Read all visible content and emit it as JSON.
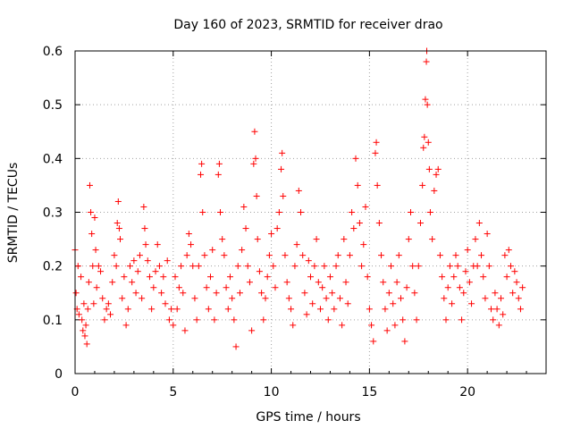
{
  "chart_data": {
    "type": "scatter",
    "title": "Day 160 of 2023, SRMTID for receiver drao",
    "xlabel": "GPS time / hours",
    "ylabel": "SRMTID / TECUs",
    "xlim": [
      0,
      24
    ],
    "ylim": [
      0,
      0.6
    ],
    "x_ticks": [
      0,
      5,
      10,
      15,
      20
    ],
    "x_tick_labels": [
      "0",
      "5",
      "10",
      "15",
      "20"
    ],
    "y_ticks": [
      0,
      0.1,
      0.2,
      0.3,
      0.4,
      0.5,
      0.6
    ],
    "y_tick_labels": [
      "0",
      "0.1",
      "0.2",
      "0.3",
      "0.4",
      "0.5",
      "0.6"
    ],
    "grid": true,
    "marker": "+",
    "color": "#ff0000",
    "series": [
      {
        "name": "SRMTID",
        "points": [
          [
            0.0,
            0.23
          ],
          [
            0.05,
            0.15
          ],
          [
            0.1,
            0.12
          ],
          [
            0.15,
            0.2
          ],
          [
            0.2,
            0.11
          ],
          [
            0.3,
            0.18
          ],
          [
            0.35,
            0.1
          ],
          [
            0.4,
            0.08
          ],
          [
            0.45,
            0.13
          ],
          [
            0.5,
            0.07
          ],
          [
            0.55,
            0.09
          ],
          [
            0.6,
            0.055
          ],
          [
            0.65,
            0.12
          ],
          [
            0.7,
            0.17
          ],
          [
            0.75,
            0.35
          ],
          [
            0.8,
            0.3
          ],
          [
            0.85,
            0.26
          ],
          [
            0.9,
            0.2
          ],
          [
            0.95,
            0.13
          ],
          [
            1.0,
            0.29
          ],
          [
            1.05,
            0.23
          ],
          [
            1.1,
            0.16
          ],
          [
            1.2,
            0.2
          ],
          [
            1.3,
            0.19
          ],
          [
            1.4,
            0.14
          ],
          [
            1.5,
            0.1
          ],
          [
            1.6,
            0.12
          ],
          [
            1.7,
            0.13
          ],
          [
            1.8,
            0.11
          ],
          [
            1.9,
            0.17
          ],
          [
            2.0,
            0.22
          ],
          [
            2.1,
            0.2
          ],
          [
            2.15,
            0.28
          ],
          [
            2.2,
            0.32
          ],
          [
            2.25,
            0.27
          ],
          [
            2.3,
            0.25
          ],
          [
            2.4,
            0.14
          ],
          [
            2.5,
            0.18
          ],
          [
            2.6,
            0.09
          ],
          [
            2.7,
            0.12
          ],
          [
            2.8,
            0.2
          ],
          [
            2.9,
            0.17
          ],
          [
            3.0,
            0.21
          ],
          [
            3.1,
            0.15
          ],
          [
            3.2,
            0.19
          ],
          [
            3.3,
            0.22
          ],
          [
            3.4,
            0.14
          ],
          [
            3.5,
            0.31
          ],
          [
            3.55,
            0.27
          ],
          [
            3.6,
            0.24
          ],
          [
            3.7,
            0.21
          ],
          [
            3.8,
            0.18
          ],
          [
            3.9,
            0.12
          ],
          [
            4.0,
            0.16
          ],
          [
            4.1,
            0.19
          ],
          [
            4.2,
            0.24
          ],
          [
            4.3,
            0.2
          ],
          [
            4.4,
            0.15
          ],
          [
            4.5,
            0.18
          ],
          [
            4.6,
            0.13
          ],
          [
            4.7,
            0.21
          ],
          [
            4.8,
            0.1
          ],
          [
            4.9,
            0.12
          ],
          [
            5.0,
            0.09
          ],
          [
            5.1,
            0.18
          ],
          [
            5.2,
            0.12
          ],
          [
            5.3,
            0.16
          ],
          [
            5.4,
            0.2
          ],
          [
            5.5,
            0.15
          ],
          [
            5.6,
            0.08
          ],
          [
            5.7,
            0.22
          ],
          [
            5.8,
            0.26
          ],
          [
            5.9,
            0.24
          ],
          [
            6.0,
            0.2
          ],
          [
            6.1,
            0.14
          ],
          [
            6.2,
            0.1
          ],
          [
            6.3,
            0.2
          ],
          [
            6.4,
            0.37
          ],
          [
            6.45,
            0.39
          ],
          [
            6.5,
            0.3
          ],
          [
            6.6,
            0.22
          ],
          [
            6.7,
            0.16
          ],
          [
            6.8,
            0.12
          ],
          [
            6.9,
            0.18
          ],
          [
            7.0,
            0.23
          ],
          [
            7.1,
            0.1
          ],
          [
            7.2,
            0.15
          ],
          [
            7.3,
            0.37
          ],
          [
            7.35,
            0.39
          ],
          [
            7.4,
            0.3
          ],
          [
            7.5,
            0.25
          ],
          [
            7.6,
            0.22
          ],
          [
            7.7,
            0.16
          ],
          [
            7.8,
            0.12
          ],
          [
            7.9,
            0.18
          ],
          [
            8.0,
            0.14
          ],
          [
            8.1,
            0.1
          ],
          [
            8.2,
            0.05
          ],
          [
            8.3,
            0.2
          ],
          [
            8.4,
            0.15
          ],
          [
            8.5,
            0.23
          ],
          [
            8.6,
            0.31
          ],
          [
            8.7,
            0.27
          ],
          [
            8.8,
            0.2
          ],
          [
            8.9,
            0.17
          ],
          [
            9.0,
            0.08
          ],
          [
            9.1,
            0.39
          ],
          [
            9.15,
            0.45
          ],
          [
            9.2,
            0.4
          ],
          [
            9.25,
            0.33
          ],
          [
            9.3,
            0.25
          ],
          [
            9.4,
            0.19
          ],
          [
            9.5,
            0.15
          ],
          [
            9.6,
            0.1
          ],
          [
            9.7,
            0.14
          ],
          [
            9.8,
            0.18
          ],
          [
            9.9,
            0.22
          ],
          [
            10.0,
            0.26
          ],
          [
            10.1,
            0.2
          ],
          [
            10.2,
            0.16
          ],
          [
            10.3,
            0.27
          ],
          [
            10.4,
            0.3
          ],
          [
            10.5,
            0.38
          ],
          [
            10.55,
            0.41
          ],
          [
            10.6,
            0.33
          ],
          [
            10.7,
            0.22
          ],
          [
            10.8,
            0.17
          ],
          [
            10.9,
            0.14
          ],
          [
            11.0,
            0.12
          ],
          [
            11.1,
            0.09
          ],
          [
            11.2,
            0.2
          ],
          [
            11.3,
            0.24
          ],
          [
            11.4,
            0.34
          ],
          [
            11.5,
            0.3
          ],
          [
            11.6,
            0.22
          ],
          [
            11.7,
            0.15
          ],
          [
            11.8,
            0.11
          ],
          [
            11.9,
            0.21
          ],
          [
            12.0,
            0.18
          ],
          [
            12.1,
            0.13
          ],
          [
            12.2,
            0.2
          ],
          [
            12.3,
            0.25
          ],
          [
            12.4,
            0.17
          ],
          [
            12.5,
            0.12
          ],
          [
            12.6,
            0.16
          ],
          [
            12.7,
            0.2
          ],
          [
            12.8,
            0.14
          ],
          [
            12.9,
            0.1
          ],
          [
            13.0,
            0.18
          ],
          [
            13.1,
            0.15
          ],
          [
            13.2,
            0.12
          ],
          [
            13.3,
            0.2
          ],
          [
            13.4,
            0.22
          ],
          [
            13.5,
            0.14
          ],
          [
            13.6,
            0.09
          ],
          [
            13.7,
            0.25
          ],
          [
            13.8,
            0.17
          ],
          [
            13.9,
            0.13
          ],
          [
            14.0,
            0.22
          ],
          [
            14.1,
            0.3
          ],
          [
            14.2,
            0.27
          ],
          [
            14.3,
            0.4
          ],
          [
            14.4,
            0.35
          ],
          [
            14.5,
            0.28
          ],
          [
            14.6,
            0.2
          ],
          [
            14.7,
            0.24
          ],
          [
            14.8,
            0.31
          ],
          [
            14.9,
            0.18
          ],
          [
            15.0,
            0.12
          ],
          [
            15.1,
            0.09
          ],
          [
            15.2,
            0.06
          ],
          [
            15.3,
            0.41
          ],
          [
            15.35,
            0.43
          ],
          [
            15.4,
            0.35
          ],
          [
            15.5,
            0.28
          ],
          [
            15.6,
            0.22
          ],
          [
            15.7,
            0.17
          ],
          [
            15.8,
            0.12
          ],
          [
            15.9,
            0.08
          ],
          [
            16.0,
            0.15
          ],
          [
            16.1,
            0.2
          ],
          [
            16.2,
            0.13
          ],
          [
            16.3,
            0.09
          ],
          [
            16.4,
            0.17
          ],
          [
            16.5,
            0.22
          ],
          [
            16.6,
            0.14
          ],
          [
            16.7,
            0.1
          ],
          [
            16.8,
            0.06
          ],
          [
            16.9,
            0.16
          ],
          [
            17.0,
            0.25
          ],
          [
            17.1,
            0.3
          ],
          [
            17.2,
            0.2
          ],
          [
            17.3,
            0.15
          ],
          [
            17.4,
            0.1
          ],
          [
            17.5,
            0.2
          ],
          [
            17.6,
            0.28
          ],
          [
            17.7,
            0.35
          ],
          [
            17.75,
            0.42
          ],
          [
            17.8,
            0.44
          ],
          [
            17.85,
            0.51
          ],
          [
            17.9,
            0.58
          ],
          [
            17.92,
            0.6
          ],
          [
            17.95,
            0.5
          ],
          [
            18.0,
            0.43
          ],
          [
            18.05,
            0.38
          ],
          [
            18.1,
            0.3
          ],
          [
            18.2,
            0.25
          ],
          [
            18.3,
            0.34
          ],
          [
            18.4,
            0.37
          ],
          [
            18.5,
            0.38
          ],
          [
            18.6,
            0.22
          ],
          [
            18.7,
            0.18
          ],
          [
            18.8,
            0.14
          ],
          [
            18.9,
            0.1
          ],
          [
            19.0,
            0.16
          ],
          [
            19.1,
            0.2
          ],
          [
            19.2,
            0.13
          ],
          [
            19.3,
            0.18
          ],
          [
            19.4,
            0.22
          ],
          [
            19.5,
            0.2
          ],
          [
            19.6,
            0.16
          ],
          [
            19.7,
            0.1
          ],
          [
            19.8,
            0.15
          ],
          [
            19.9,
            0.19
          ],
          [
            20.0,
            0.23
          ],
          [
            20.1,
            0.17
          ],
          [
            20.2,
            0.13
          ],
          [
            20.3,
            0.2
          ],
          [
            20.4,
            0.25
          ],
          [
            20.5,
            0.2
          ],
          [
            20.6,
            0.28
          ],
          [
            20.7,
            0.22
          ],
          [
            20.8,
            0.18
          ],
          [
            20.9,
            0.14
          ],
          [
            21.0,
            0.26
          ],
          [
            21.1,
            0.2
          ],
          [
            21.2,
            0.12
          ],
          [
            21.3,
            0.1
          ],
          [
            21.4,
            0.15
          ],
          [
            21.5,
            0.12
          ],
          [
            21.6,
            0.09
          ],
          [
            21.7,
            0.14
          ],
          [
            21.8,
            0.11
          ],
          [
            21.9,
            0.22
          ],
          [
            22.0,
            0.18
          ],
          [
            22.1,
            0.23
          ],
          [
            22.2,
            0.2
          ],
          [
            22.3,
            0.15
          ],
          [
            22.4,
            0.19
          ],
          [
            22.5,
            0.17
          ],
          [
            22.6,
            0.14
          ],
          [
            22.7,
            0.12
          ],
          [
            22.8,
            0.16
          ]
        ]
      }
    ]
  }
}
